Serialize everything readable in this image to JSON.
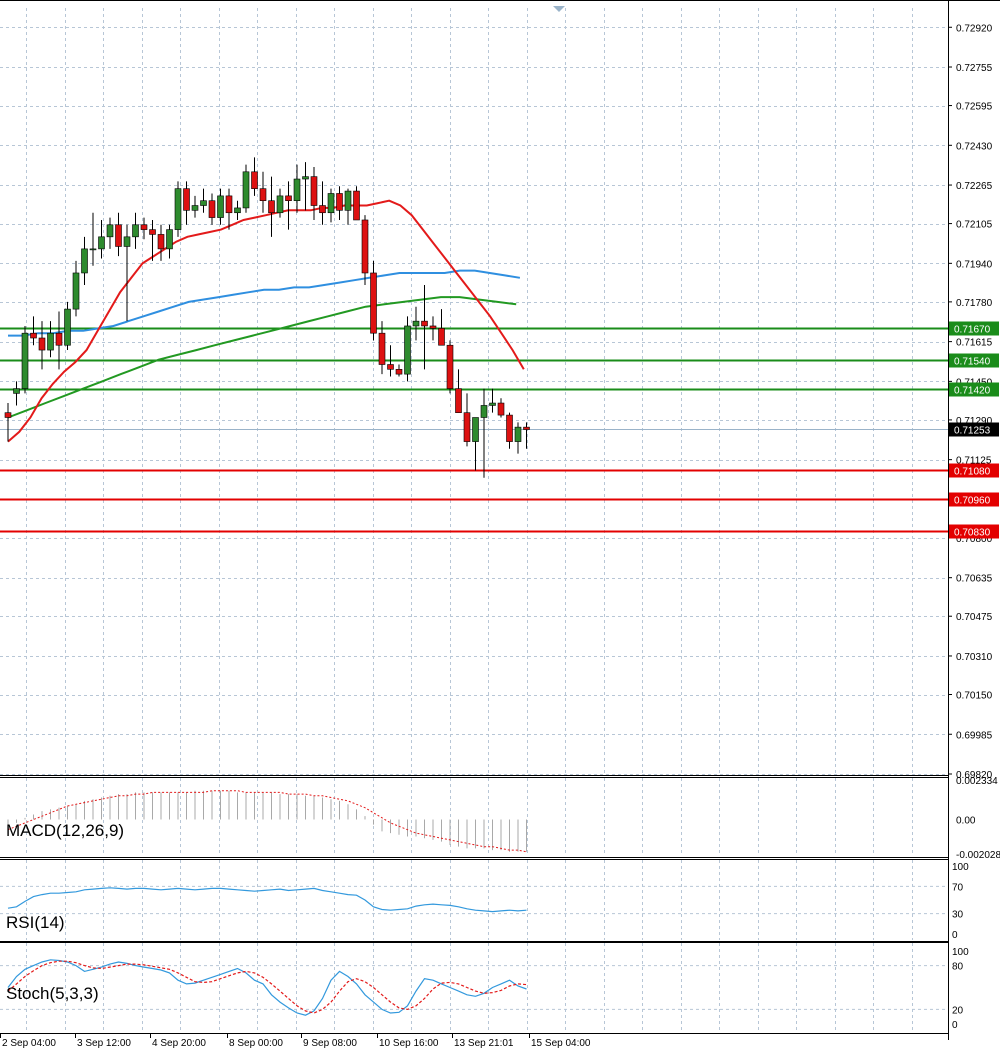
{
  "colors": {
    "background": "#ffffff",
    "grid": "#b7c6d6",
    "bull": "#2e8b2e",
    "bear": "#dd1111",
    "ma_fast": "#e31a1a",
    "ma_mid": "#2f8fe0",
    "ma_slow": "#229922",
    "support": "#e30000",
    "resistance": "#1a8c1a",
    "current_line": "#9ab3c9",
    "indicator_line": "#3399dd",
    "stoch_signal": "#e31a1a"
  },
  "chart_data": [
    {
      "type": "candlestick",
      "name": "price",
      "ylim": [
        0.6982,
        0.73
      ],
      "yticks": [
        "0.72920",
        "0.72755",
        "0.72595",
        "0.72430",
        "0.72265",
        "0.72105",
        "0.71940",
        "0.71780",
        "0.71615",
        "0.71450",
        "0.71290",
        "0.71125",
        "0.70800",
        "0.70635",
        "0.70475",
        "0.70310",
        "0.70150",
        "0.69985",
        "0.69820"
      ],
      "xticks": [
        "2 Sep 04:00",
        "3 Sep 12:00",
        "4 Sep 20:00",
        "8 Sep 00:00",
        "9 Sep 08:00",
        "10 Sep 16:00",
        "13 Sep 21:01",
        "15 Sep 04:00"
      ],
      "candles": [
        [
          0.7132,
          0.7136,
          0.712,
          0.713
        ],
        [
          0.714,
          0.7145,
          0.7135,
          0.7142
        ],
        [
          0.7142,
          0.7168,
          0.714,
          0.7165
        ],
        [
          0.7165,
          0.7172,
          0.716,
          0.7163
        ],
        [
          0.7163,
          0.717,
          0.715,
          0.7158
        ],
        [
          0.7158,
          0.717,
          0.7155,
          0.7165
        ],
        [
          0.7165,
          0.7174,
          0.715,
          0.716
        ],
        [
          0.716,
          0.7178,
          0.7158,
          0.7175
        ],
        [
          0.7175,
          0.7195,
          0.7172,
          0.719
        ],
        [
          0.719,
          0.7205,
          0.7185,
          0.72
        ],
        [
          0.72,
          0.7215,
          0.7193,
          0.72
        ],
        [
          0.72,
          0.7212,
          0.7196,
          0.7205
        ],
        [
          0.7205,
          0.7213,
          0.72,
          0.721
        ],
        [
          0.721,
          0.7215,
          0.7197,
          0.7201
        ],
        [
          0.7201,
          0.721,
          0.717,
          0.7205
        ],
        [
          0.7205,
          0.7215,
          0.72,
          0.721
        ],
        [
          0.721,
          0.7213,
          0.7204,
          0.7208
        ],
        [
          0.7208,
          0.7212,
          0.7195,
          0.7206
        ],
        [
          0.7206,
          0.721,
          0.7195,
          0.72
        ],
        [
          0.72,
          0.721,
          0.7196,
          0.7208
        ],
        [
          0.7208,
          0.7228,
          0.7205,
          0.7225
        ],
        [
          0.7225,
          0.7228,
          0.721,
          0.7216
        ],
        [
          0.7216,
          0.7222,
          0.7213,
          0.7218
        ],
        [
          0.7218,
          0.7225,
          0.7215,
          0.722
        ],
        [
          0.722,
          0.7223,
          0.721,
          0.7213
        ],
        [
          0.7213,
          0.7225,
          0.721,
          0.7222
        ],
        [
          0.7222,
          0.7225,
          0.7208,
          0.7215
        ],
        [
          0.7215,
          0.722,
          0.7212,
          0.7217
        ],
        [
          0.7217,
          0.7235,
          0.7215,
          0.7232
        ],
        [
          0.7232,
          0.7238,
          0.7222,
          0.7225
        ],
        [
          0.7225,
          0.7232,
          0.7215,
          0.722
        ],
        [
          0.722,
          0.723,
          0.7205,
          0.7215
        ],
        [
          0.7215,
          0.7225,
          0.7213,
          0.7222
        ],
        [
          0.7222,
          0.7228,
          0.7208,
          0.722
        ],
        [
          0.722,
          0.7235,
          0.7215,
          0.7229
        ],
        [
          0.7229,
          0.7236,
          0.7216,
          0.723
        ],
        [
          0.723,
          0.7234,
          0.7212,
          0.7218
        ],
        [
          0.7218,
          0.7228,
          0.721,
          0.7215
        ],
        [
          0.7215,
          0.7225,
          0.7211,
          0.7223
        ],
        [
          0.7223,
          0.7226,
          0.7212,
          0.7216
        ],
        [
          0.7216,
          0.7225,
          0.721,
          0.7224
        ],
        [
          0.7224,
          0.7226,
          0.7214,
          0.7212
        ],
        [
          0.7212,
          0.7214,
          0.7185,
          0.719
        ],
        [
          0.719,
          0.7195,
          0.7162,
          0.7165
        ],
        [
          0.7165,
          0.717,
          0.7148,
          0.7152
        ],
        [
          0.7152,
          0.716,
          0.7147,
          0.715
        ],
        [
          0.715,
          0.7152,
          0.7147,
          0.7148
        ],
        [
          0.7148,
          0.7172,
          0.7145,
          0.7168
        ],
        [
          0.7168,
          0.7176,
          0.7162,
          0.717
        ],
        [
          0.717,
          0.7185,
          0.715,
          0.7168
        ],
        [
          0.7168,
          0.7172,
          0.7162,
          0.7167
        ],
        [
          0.7167,
          0.7175,
          0.716,
          0.716
        ],
        [
          0.716,
          0.7162,
          0.714,
          0.7142
        ],
        [
          0.7142,
          0.715,
          0.7132,
          0.7132
        ],
        [
          0.7132,
          0.714,
          0.7118,
          0.712
        ],
        [
          0.712,
          0.713,
          0.7108,
          0.713
        ],
        [
          0.713,
          0.7142,
          0.7105,
          0.7135
        ],
        [
          0.7135,
          0.7142,
          0.7132,
          0.7136
        ],
        [
          0.7136,
          0.7138,
          0.713,
          0.7131
        ],
        [
          0.7131,
          0.7132,
          0.7117,
          0.712
        ],
        [
          0.712,
          0.7128,
          0.7115,
          0.7126
        ],
        [
          0.7126,
          0.7128,
          0.7117,
          0.7125
        ]
      ],
      "ma_fast": [
        0.712,
        0.7124,
        0.713,
        0.7138,
        0.7144,
        0.7149,
        0.7153,
        0.7158,
        0.7166,
        0.7174,
        0.7182,
        0.7188,
        0.7194,
        0.7197,
        0.72,
        0.7203,
        0.7205,
        0.7206,
        0.7207,
        0.7208,
        0.721,
        0.7212,
        0.7213,
        0.7214,
        0.7215,
        0.7216,
        0.7216,
        0.7216,
        0.7217,
        0.7217,
        0.7218,
        0.7218,
        0.7218,
        0.7219,
        0.722,
        0.7218,
        0.7214,
        0.7208,
        0.7202,
        0.7196,
        0.719,
        0.7184,
        0.7178,
        0.7172,
        0.7165,
        0.7158,
        0.715
      ],
      "ma_mid": [
        0.7164,
        0.7164,
        0.7165,
        0.7165,
        0.7166,
        0.7166,
        0.7167,
        0.7168,
        0.717,
        0.7172,
        0.7174,
        0.7176,
        0.7178,
        0.7179,
        0.718,
        0.7181,
        0.7182,
        0.7183,
        0.7183,
        0.7184,
        0.7184,
        0.7185,
        0.7186,
        0.7187,
        0.7188,
        0.7189,
        0.719,
        0.719,
        0.719,
        0.719,
        0.7191,
        0.7191,
        0.719,
        0.7189,
        0.7188
      ],
      "ma_slow": [
        0.713,
        0.7133,
        0.7136,
        0.7139,
        0.7142,
        0.7145,
        0.7148,
        0.7151,
        0.7154,
        0.7156,
        0.7158,
        0.716,
        0.7162,
        0.7164,
        0.7166,
        0.7168,
        0.717,
        0.7172,
        0.7174,
        0.7176,
        0.7177,
        0.7178,
        0.7179,
        0.718,
        0.718,
        0.7179,
        0.7178,
        0.7177
      ],
      "levels": [
        {
          "value": 0.7167,
          "label": "0.71670",
          "kind": "resistance"
        },
        {
          "value": 0.7154,
          "label": "0.71540",
          "kind": "resistance"
        },
        {
          "value": 0.7142,
          "label": "0.71420",
          "kind": "resistance"
        },
        {
          "value": 0.7108,
          "label": "0.71080",
          "kind": "support"
        },
        {
          "value": 0.7096,
          "label": "0.70960",
          "kind": "support"
        },
        {
          "value": 0.7083,
          "label": "0.70830",
          "kind": "support"
        }
      ],
      "current_price": {
        "value": 0.71253,
        "label": "0.71253"
      }
    },
    {
      "type": "histogram",
      "name": "macd",
      "label": "MACD(12,26,9)",
      "yticks": [
        "0.002334",
        "0.00",
        "-0.002028"
      ],
      "ylim": [
        -0.00215,
        0.00245
      ],
      "values": [
        -0.0003,
        -0.0002,
        0.0001,
        0.0003,
        0.0005,
        0.0006,
        0.0007,
        0.0008,
        0.0009,
        0.0011,
        0.0012,
        0.0013,
        0.0014,
        0.0015,
        0.0015,
        0.0016,
        0.0016,
        0.0016,
        0.0016,
        0.0016,
        0.0016,
        0.0016,
        0.0017,
        0.0017,
        0.0017,
        0.0017,
        0.0017,
        0.0016,
        0.0016,
        0.0016,
        0.0016,
        0.0016,
        0.0015,
        0.0015,
        0.0015,
        0.0014,
        0.0014,
        0.0013,
        0.0012,
        0.0011,
        0.0009,
        0.0006,
        0.0002,
        -0.0003,
        -0.0007,
        -0.0008,
        -0.0009,
        -0.001,
        -0.001,
        -0.0011,
        -0.0012,
        -0.0013,
        -0.0015,
        -0.0016,
        -0.0017,
        -0.0017,
        -0.0017,
        -0.0018,
        -0.0018,
        -0.0019,
        -0.0019,
        -0.0019
      ],
      "signal": [
        -0.0006,
        -0.0004,
        -0.0002,
        0.0,
        0.0002,
        0.0004,
        0.0006,
        0.0008,
        0.0009,
        0.001,
        0.0011,
        0.0012,
        0.0013,
        0.0014,
        0.0014,
        0.0015,
        0.0015,
        0.0016,
        0.0016,
        0.0016,
        0.0016,
        0.0016,
        0.0016,
        0.0016,
        0.0017,
        0.0017,
        0.0017,
        0.0017,
        0.0016,
        0.0016,
        0.0016,
        0.0016,
        0.0016,
        0.0015,
        0.0015,
        0.0015,
        0.0014,
        0.0014,
        0.0013,
        0.0012,
        0.0011,
        0.0009,
        0.0007,
        0.0004,
        0.0001,
        -0.0002,
        -0.0004,
        -0.0006,
        -0.0008,
        -0.0009,
        -0.001,
        -0.0011,
        -0.0012,
        -0.0013,
        -0.0014,
        -0.0015,
        -0.0016,
        -0.0016,
        -0.0017,
        -0.0018,
        -0.0018,
        -0.0019
      ]
    },
    {
      "type": "line",
      "name": "rsi",
      "label": "RSI(14)",
      "yticks": [
        "100",
        "70",
        "30",
        "0"
      ],
      "ylim": [
        0,
        100
      ],
      "levels": [
        70,
        30
      ],
      "values": [
        38,
        40,
        48,
        55,
        58,
        60,
        60,
        61,
        62,
        65,
        66,
        67,
        68,
        67,
        66,
        67,
        67,
        66,
        65,
        66,
        67,
        66,
        65,
        66,
        67,
        67,
        66,
        65,
        64,
        63,
        64,
        65,
        66,
        64,
        65,
        66,
        67,
        64,
        62,
        60,
        58,
        57,
        50,
        40,
        36,
        35,
        36,
        37,
        41,
        43,
        44,
        43,
        42,
        40,
        37,
        35,
        34,
        33,
        34,
        35,
        34,
        35
      ]
    },
    {
      "type": "line",
      "name": "stoch",
      "label": "Stoch(5,3,3)",
      "yticks": [
        "100",
        "80",
        "20",
        "0"
      ],
      "ylim": [
        0,
        100
      ],
      "levels": [
        80,
        20
      ],
      "main": [
        50,
        65,
        75,
        80,
        85,
        88,
        87,
        85,
        80,
        72,
        75,
        78,
        82,
        85,
        83,
        80,
        78,
        76,
        74,
        70,
        60,
        55,
        56,
        60,
        64,
        68,
        72,
        76,
        70,
        60,
        55,
        40,
        30,
        22,
        15,
        12,
        18,
        35,
        60,
        72,
        65,
        55,
        40,
        30,
        20,
        15,
        16,
        25,
        45,
        62,
        60,
        55,
        50,
        45,
        40,
        38,
        42,
        50,
        55,
        60,
        52,
        48
      ],
      "signal": [
        45,
        55,
        65,
        73,
        80,
        84,
        86,
        86,
        84,
        80,
        77,
        76,
        78,
        80,
        82,
        82,
        81,
        79,
        77,
        75,
        70,
        64,
        58,
        57,
        58,
        62,
        66,
        70,
        72,
        70,
        64,
        55,
        45,
        35,
        25,
        18,
        15,
        20,
        30,
        45,
        58,
        62,
        58,
        50,
        40,
        30,
        22,
        20,
        25,
        35,
        48,
        56,
        57,
        55,
        50,
        45,
        42,
        43,
        46,
        52,
        55,
        54
      ]
    }
  ]
}
